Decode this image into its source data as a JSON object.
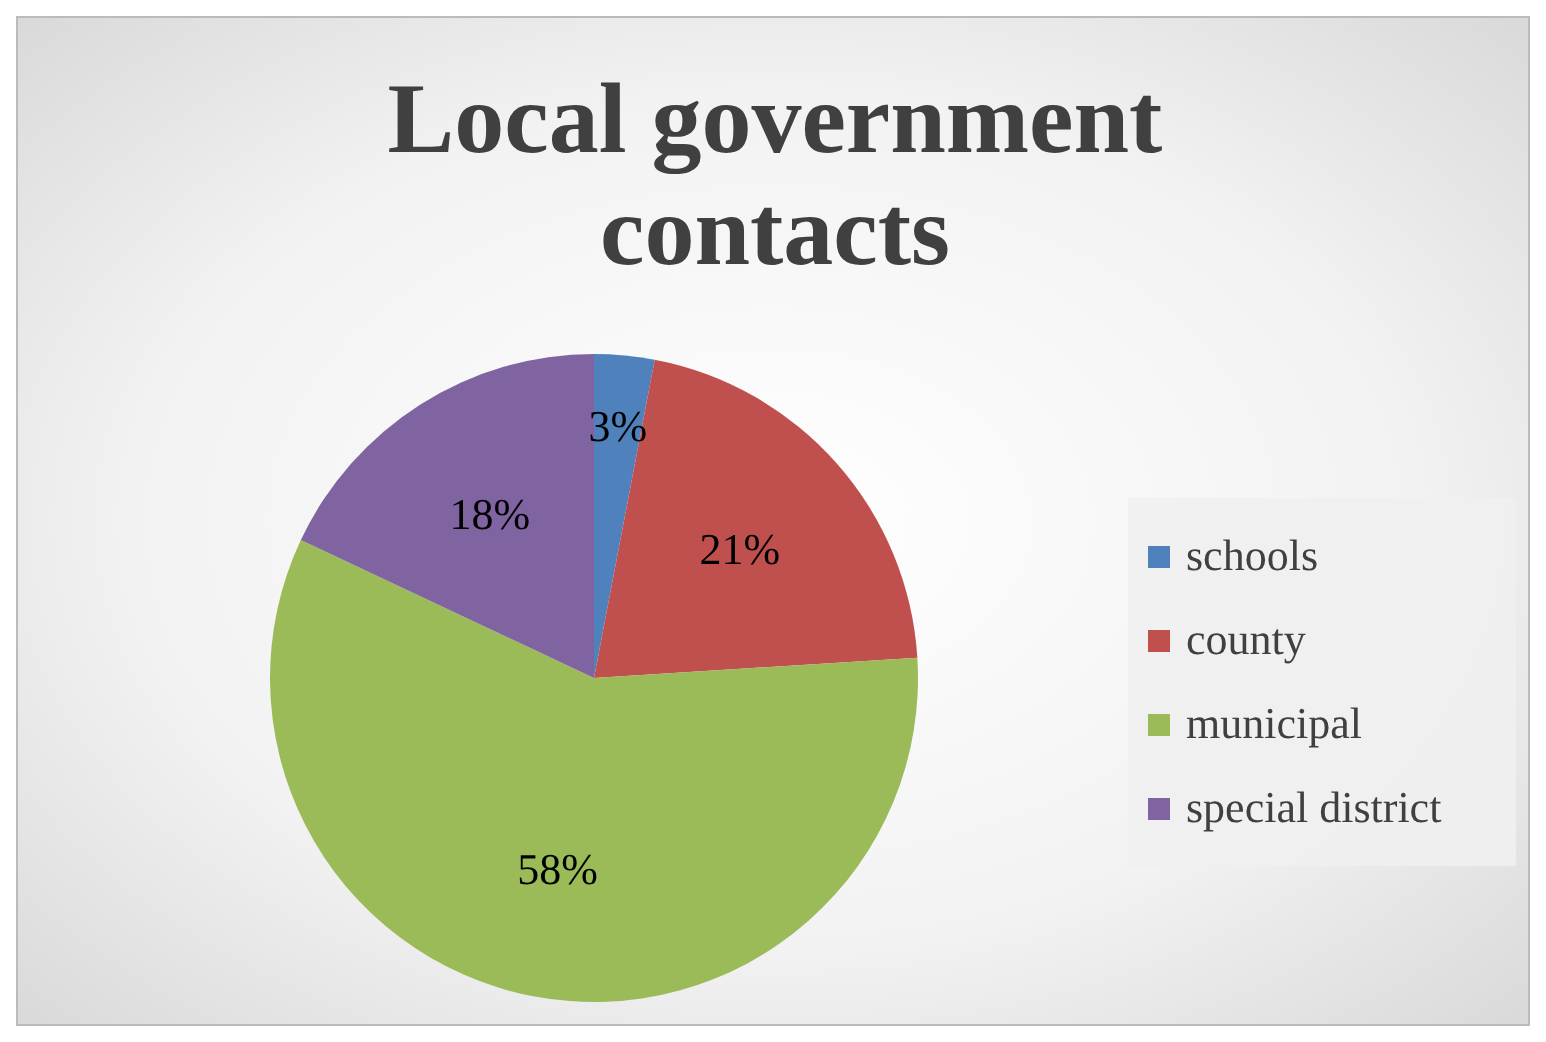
{
  "chart_data": {
    "type": "pie",
    "title": "Local government contacts",
    "categories": [
      "schools",
      "county",
      "municipal",
      "special district"
    ],
    "values": [
      3,
      21,
      58,
      18
    ],
    "colors": [
      "#4f81bd",
      "#c0504d",
      "#9bbb59",
      "#8064a2"
    ],
    "value_labels": [
      "3%",
      "21%",
      "58%",
      "18%"
    ],
    "legend": "right"
  }
}
